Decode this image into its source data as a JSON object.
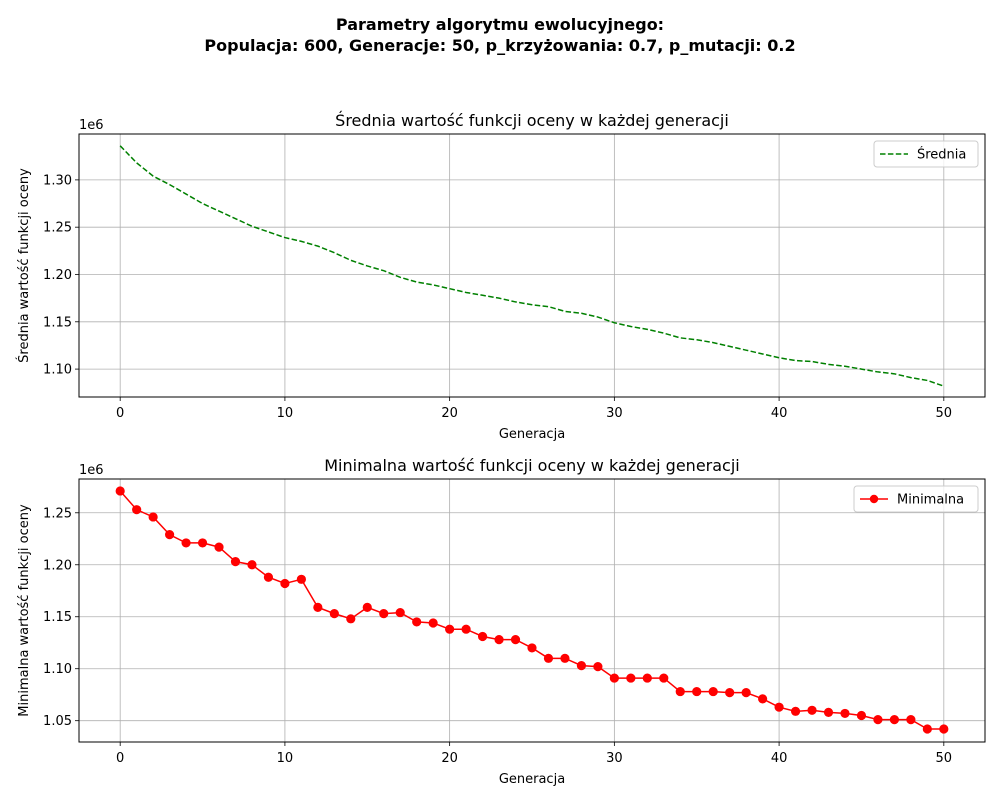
{
  "figure": {
    "suptitle_line1": "Parametry algorytmu ewolucyjnego:",
    "suptitle_line2": "Populacja: 600, Generacje: 50, p_krzyżowania: 0.7, p_mutacji: 0.2"
  },
  "chart_data": [
    {
      "type": "line",
      "title": "Średnia wartość funkcji oceny w każdej generacji",
      "xlabel": "Generacja",
      "ylabel": "Średnia wartość funkcji oceny",
      "offset_label": "1e6",
      "xlim": [
        -2.5,
        52.5
      ],
      "ylim": [
        1.0705,
        1.3485
      ],
      "xticks": [
        0,
        10,
        20,
        30,
        40,
        50
      ],
      "yticks": [
        1.1,
        1.15,
        1.2,
        1.25,
        1.3
      ],
      "ytick_labels": [
        "1.10",
        "1.15",
        "1.20",
        "1.25",
        "1.30"
      ],
      "grid": true,
      "legend": "top-right",
      "series": [
        {
          "name": "Średnia",
          "color": "#008000",
          "style": "dashed",
          "marker": "none",
          "x": [
            0,
            1,
            2,
            3,
            4,
            5,
            6,
            7,
            8,
            9,
            10,
            11,
            12,
            13,
            14,
            15,
            16,
            17,
            18,
            19,
            20,
            21,
            22,
            23,
            24,
            25,
            26,
            27,
            28,
            29,
            30,
            31,
            32,
            33,
            34,
            35,
            36,
            37,
            38,
            39,
            40,
            41,
            42,
            43,
            44,
            45,
            46,
            47,
            48,
            49,
            50
          ],
          "values": [
            1.336,
            1.318,
            1.304,
            1.295,
            1.285,
            1.275,
            1.267,
            1.259,
            1.251,
            1.245,
            1.239,
            1.235,
            1.23,
            1.223,
            1.215,
            1.209,
            1.204,
            1.197,
            1.192,
            1.189,
            1.185,
            1.181,
            1.178,
            1.175,
            1.171,
            1.168,
            1.166,
            1.161,
            1.159,
            1.155,
            1.149,
            1.145,
            1.142,
            1.138,
            1.133,
            1.131,
            1.128,
            1.124,
            1.12,
            1.116,
            1.112,
            1.109,
            1.108,
            1.105,
            1.103,
            1.1,
            1.097,
            1.095,
            1.091,
            1.088,
            1.082
          ]
        }
      ]
    },
    {
      "type": "line",
      "title": "Minimalna wartość funkcji oceny w każdej generacji",
      "xlabel": "Generacja",
      "ylabel": "Minimalna wartość funkcji oceny",
      "offset_label": "1e6",
      "xlim": [
        -2.5,
        52.5
      ],
      "ylim": [
        1.0295,
        1.2825
      ],
      "xticks": [
        0,
        10,
        20,
        30,
        40,
        50
      ],
      "yticks": [
        1.05,
        1.1,
        1.15,
        1.2,
        1.25
      ],
      "ytick_labels": [
        "1.05",
        "1.10",
        "1.15",
        "1.20",
        "1.25"
      ],
      "grid": true,
      "legend": "top-right",
      "series": [
        {
          "name": "Minimalna",
          "color": "#ff0000",
          "style": "solid",
          "marker": "circle",
          "x": [
            0,
            1,
            2,
            3,
            4,
            5,
            6,
            7,
            8,
            9,
            10,
            11,
            12,
            13,
            14,
            15,
            16,
            17,
            18,
            19,
            20,
            21,
            22,
            23,
            24,
            25,
            26,
            27,
            28,
            29,
            30,
            31,
            32,
            33,
            34,
            35,
            36,
            37,
            38,
            39,
            40,
            41,
            42,
            43,
            44,
            45,
            46,
            47,
            48,
            49,
            50
          ],
          "values": [
            1.271,
            1.253,
            1.246,
            1.229,
            1.221,
            1.221,
            1.217,
            1.203,
            1.2,
            1.188,
            1.182,
            1.186,
            1.159,
            1.153,
            1.148,
            1.159,
            1.153,
            1.154,
            1.145,
            1.144,
            1.138,
            1.138,
            1.131,
            1.128,
            1.128,
            1.12,
            1.11,
            1.11,
            1.103,
            1.102,
            1.091,
            1.091,
            1.091,
            1.091,
            1.078,
            1.078,
            1.078,
            1.077,
            1.077,
            1.071,
            1.063,
            1.059,
            1.06,
            1.058,
            1.057,
            1.055,
            1.051,
            1.051,
            1.051,
            1.042,
            1.042
          ]
        }
      ]
    }
  ]
}
